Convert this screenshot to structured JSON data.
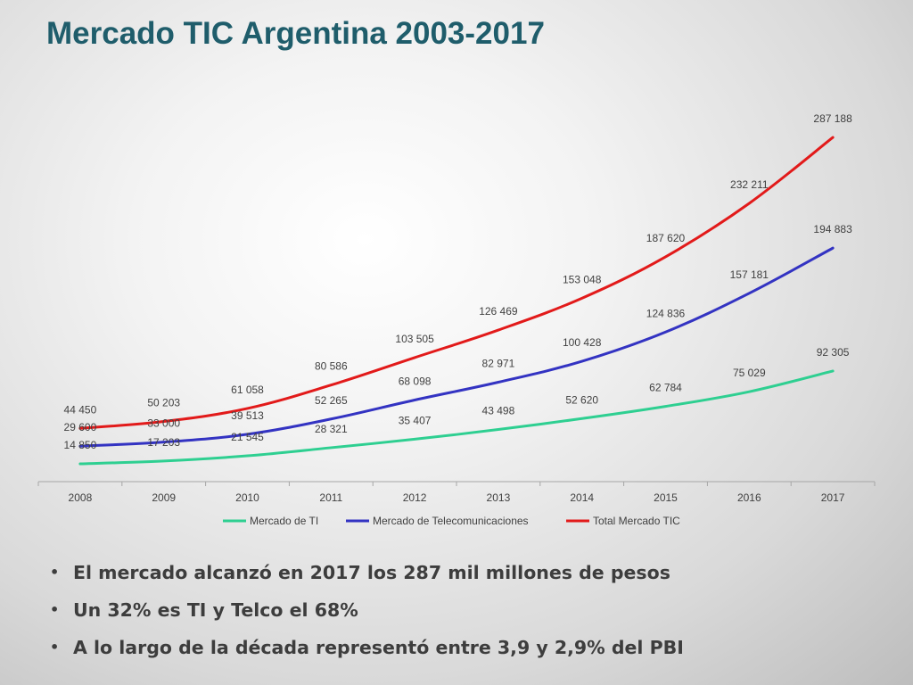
{
  "slide": {
    "title": "Mercado TIC Argentina 2003-2017",
    "bullets": [
      "El mercado alcanzó en 2017 los 287 mil millones de pesos",
      "Un 32% es TI y Telco el 68%",
      "A lo largo de la década representó entre 3,9 y 2,9% del PBI"
    ]
  },
  "chart_data": {
    "type": "line",
    "title": "",
    "xlabel": "",
    "ylabel": "",
    "categories": [
      "2008",
      "2009",
      "2010",
      "2011",
      "2012",
      "2013",
      "2014",
      "2015",
      "2016",
      "2017"
    ],
    "ylim": [
      0,
      320000
    ],
    "grid": false,
    "legend_position": "bottom",
    "series": [
      {
        "name": "Mercado de TI",
        "color": "#2ecf91",
        "values": [
          14850,
          17203,
          21545,
          28321,
          35407,
          43498,
          52620,
          62784,
          75029,
          92305
        ],
        "labels": [
          "14 850",
          "17 203",
          "21 545",
          "28 321",
          "35 407",
          "43 498",
          "52 620",
          "62 784",
          "75 029",
          "92 305"
        ]
      },
      {
        "name": "Mercado de Telecomunicaciones",
        "color": "#3333c2",
        "values": [
          29600,
          33000,
          39513,
          52265,
          68098,
          82971,
          100428,
          124836,
          157181,
          194883
        ],
        "labels": [
          "29 600",
          "33 000",
          "39 513",
          "52 265",
          "68 098",
          "82 971",
          "100 428",
          "124 836",
          "157 181",
          "194 883"
        ]
      },
      {
        "name": "Total Mercado TIC",
        "color": "#e21a1a",
        "values": [
          44450,
          50203,
          61058,
          80586,
          103505,
          126469,
          153048,
          187620,
          232211,
          287188
        ],
        "labels": [
          "44 450",
          "50 203",
          "61 058",
          "80 586",
          "103 505",
          "126 469",
          "153 048",
          "187 620",
          "232 211",
          "287 188"
        ]
      }
    ]
  }
}
